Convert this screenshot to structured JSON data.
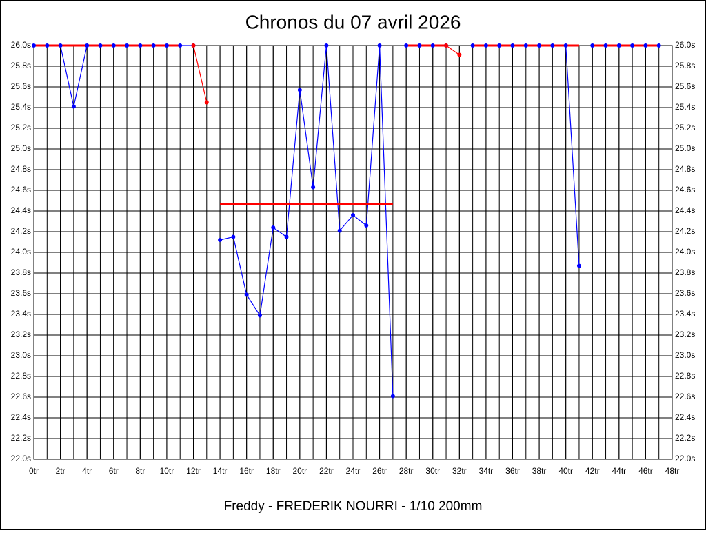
{
  "chart_data": {
    "type": "line",
    "title": "Chronos du 07 avril 2026",
    "x_label": "Freddy - FREDERIK NOURRI - 1/10 200mm",
    "xlim": [
      0,
      48
    ],
    "xticks": [
      {
        "value": 0,
        "label": "0tr"
      },
      {
        "value": 2,
        "label": "2tr"
      },
      {
        "value": 4,
        "label": "4tr"
      },
      {
        "value": 6,
        "label": "6tr"
      },
      {
        "value": 8,
        "label": "8tr"
      },
      {
        "value": 10,
        "label": "10tr"
      },
      {
        "value": 12,
        "label": "12tr"
      },
      {
        "value": 14,
        "label": "14tr"
      },
      {
        "value": 16,
        "label": "16tr"
      },
      {
        "value": 18,
        "label": "18tr"
      },
      {
        "value": 20,
        "label": "20tr"
      },
      {
        "value": 22,
        "label": "22tr"
      },
      {
        "value": 24,
        "label": "24tr"
      },
      {
        "value": 26,
        "label": "26tr"
      },
      {
        "value": 28,
        "label": "28tr"
      },
      {
        "value": 30,
        "label": "30tr"
      },
      {
        "value": 32,
        "label": "32tr"
      },
      {
        "value": 34,
        "label": "34tr"
      },
      {
        "value": 36,
        "label": "36tr"
      },
      {
        "value": 38,
        "label": "38tr"
      },
      {
        "value": 40,
        "label": "40tr"
      },
      {
        "value": 42,
        "label": "42tr"
      },
      {
        "value": 44,
        "label": "44tr"
      },
      {
        "value": 46,
        "label": "46tr"
      },
      {
        "value": 48,
        "label": "48tr"
      }
    ],
    "xgrid_step": 1,
    "ylim": [
      22.0,
      26.0
    ],
    "yticks": [
      {
        "value": 22.0,
        "label": "22.0s"
      },
      {
        "value": 22.2,
        "label": "22.2s"
      },
      {
        "value": 22.4,
        "label": "22.4s"
      },
      {
        "value": 22.6,
        "label": "22.6s"
      },
      {
        "value": 22.8,
        "label": "22.8s"
      },
      {
        "value": 23.0,
        "label": "23.0s"
      },
      {
        "value": 23.2,
        "label": "23.2s"
      },
      {
        "value": 23.4,
        "label": "23.4s"
      },
      {
        "value": 23.6,
        "label": "23.6s"
      },
      {
        "value": 23.8,
        "label": "23.8s"
      },
      {
        "value": 24.0,
        "label": "24.0s"
      },
      {
        "value": 24.2,
        "label": "24.2s"
      },
      {
        "value": 24.4,
        "label": "24.4s"
      },
      {
        "value": 24.6,
        "label": "24.6s"
      },
      {
        "value": 24.8,
        "label": "24.8s"
      },
      {
        "value": 25.0,
        "label": "25.0s"
      },
      {
        "value": 25.2,
        "label": "25.2s"
      },
      {
        "value": 25.4,
        "label": "25.4s"
      },
      {
        "value": 25.6,
        "label": "25.6s"
      },
      {
        "value": 25.8,
        "label": "25.8s"
      },
      {
        "value": 26.0,
        "label": "26.0s"
      }
    ],
    "grid": true,
    "series": [
      {
        "color": "#0000ff",
        "markers": true,
        "x": [
          0,
          1,
          2,
          3,
          4,
          5,
          6,
          7,
          8,
          9,
          10,
          11,
          12
        ],
        "values": [
          26.0,
          26.0,
          26.0,
          25.41,
          26.0,
          26.0,
          26.0,
          26.0,
          26.0,
          26.0,
          26.0,
          26.0,
          26.0
        ]
      },
      {
        "color": "#0000ff",
        "markers": true,
        "x": [
          14,
          15,
          16,
          17,
          18,
          19,
          20,
          21,
          22,
          23,
          24,
          25,
          26,
          27
        ],
        "values": [
          24.12,
          24.15,
          23.59,
          23.39,
          24.24,
          24.15,
          25.57,
          24.63,
          26.0,
          24.21,
          24.36,
          24.26,
          26.0,
          22.61
        ]
      },
      {
        "color": "#0000ff",
        "markers": true,
        "x": [
          28,
          29,
          30,
          31
        ],
        "values": [
          26.0,
          26.0,
          26.0,
          26.0
        ]
      },
      {
        "color": "#0000ff",
        "markers": true,
        "x": [
          33,
          34,
          35,
          36,
          37,
          38,
          39,
          40,
          41
        ],
        "values": [
          26.0,
          26.0,
          26.0,
          26.0,
          26.0,
          26.0,
          26.0,
          26.0,
          23.87
        ]
      },
      {
        "color": "#0000ff",
        "markers": true,
        "x": [
          42,
          43,
          44,
          45,
          46,
          47
        ],
        "values": [
          26.0,
          26.0,
          26.0,
          26.0,
          26.0,
          26.0
        ]
      },
      {
        "color": "#ff0000",
        "markers": false,
        "x": [
          0,
          11
        ],
        "values": [
          26.0,
          26.0
        ]
      },
      {
        "color": "#ff0000",
        "markers": false,
        "x": [
          14,
          27
        ],
        "values": [
          24.47,
          24.47
        ]
      },
      {
        "color": "#ff0000",
        "markers": false,
        "x": [
          28,
          31
        ],
        "values": [
          26.0,
          26.0
        ]
      },
      {
        "color": "#ff0000",
        "markers": false,
        "x": [
          33,
          41
        ],
        "values": [
          26.0,
          26.0
        ]
      },
      {
        "color": "#ff0000",
        "markers": false,
        "x": [
          42,
          47
        ],
        "values": [
          26.0,
          26.0
        ]
      },
      {
        "color": "#ff0000",
        "markers": true,
        "x": [
          12,
          13
        ],
        "values": [
          26.0,
          25.45
        ]
      },
      {
        "color": "#ff0000",
        "markers": true,
        "x": [
          31,
          32
        ],
        "values": [
          26.0,
          25.91
        ]
      }
    ]
  }
}
